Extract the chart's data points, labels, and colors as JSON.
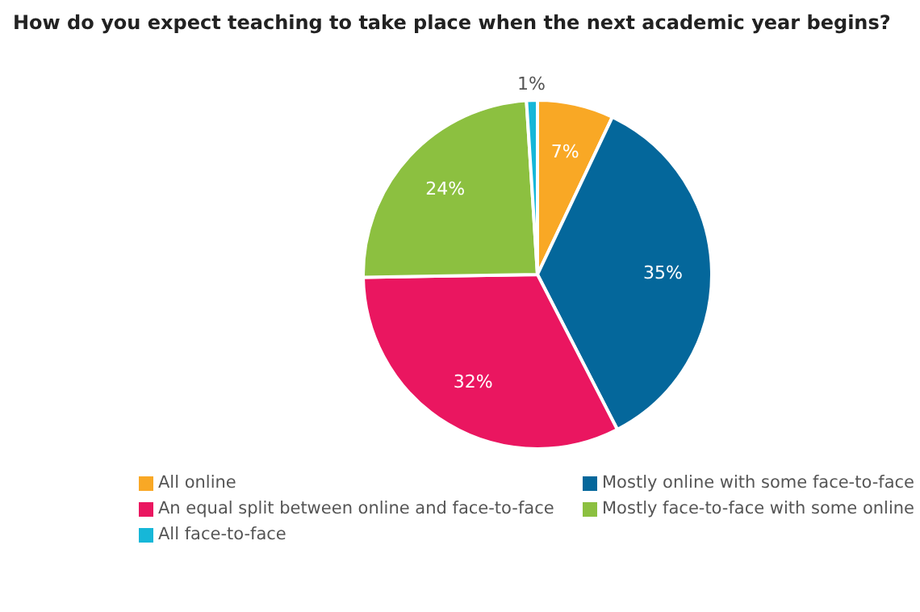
{
  "chart_data": {
    "type": "pie",
    "title": "How do you expect teaching to take place when the next academic year begins?",
    "categories": [
      "All online",
      "Mostly online with some face-to-face",
      "An equal split between online and face-to-face",
      "Mostly face-to-face with some online",
      "All face-to-face"
    ],
    "values": [
      7,
      35,
      32,
      24,
      1
    ],
    "colors": [
      "#f9a825",
      "#04679b",
      "#ea1660",
      "#8cc040",
      "#16b7d8"
    ],
    "value_labels": [
      "7%",
      "35%",
      "32%",
      "24%",
      "1%"
    ],
    "legend": "bottom"
  }
}
